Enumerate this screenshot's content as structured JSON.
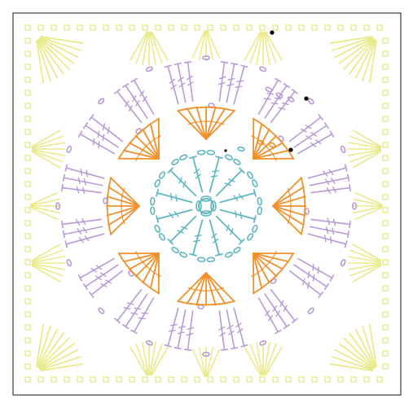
{
  "figure": {
    "type": "crochet-chart",
    "shape": "granny-square",
    "frame_color": "#3a3a3a",
    "background": "#ffffff",
    "center_ring": {
      "color": "#5fb8c0",
      "icon": "magic-ring"
    },
    "rounds": [
      {
        "round": 1,
        "color": "#5fb8c0",
        "stitch": "treble-fan",
        "repeats": 12
      },
      {
        "round": 2,
        "color": "#f0902a",
        "stitch": "shell",
        "repeats": 8
      },
      {
        "round": 3,
        "color": "#b89ad6",
        "stitch": "treble-cluster",
        "repeats": 16
      },
      {
        "round": 4,
        "color": "#eaea8c",
        "stitch": "corner-fan",
        "repeats": 8
      }
    ],
    "markers": [
      {
        "name": "round-end-marker",
        "color": "#000000"
      },
      {
        "name": "round-end-marker",
        "color": "#000000"
      },
      {
        "name": "round-end-marker",
        "color": "#000000"
      },
      {
        "name": "round-end-marker",
        "color": "#000000"
      }
    ]
  }
}
